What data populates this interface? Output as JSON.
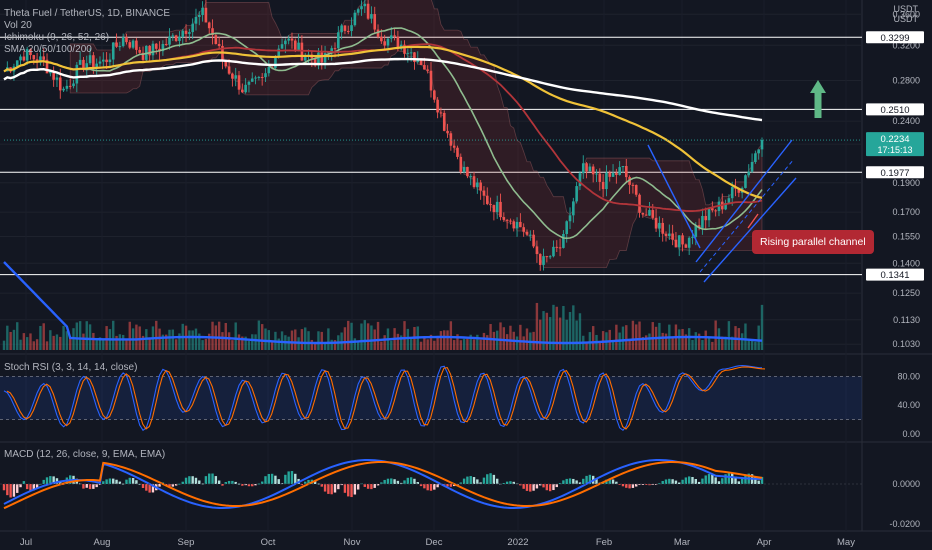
{
  "legend": {
    "symbol": "Theta Fuel / TetherUS, 1D, BINANCE",
    "volume": "Vol 20",
    "ichimoku": "Ichimoku (9, 26, 52, 26)",
    "sma": "SMA 20/50/100/200",
    "stoch": "Stoch RSI (3, 3, 14, 14, close)",
    "macd": "MACD (12, 26, close, 9, EMA, EMA)"
  },
  "price_axis_unit": [
    "USDT",
    "USDT"
  ],
  "current_price": {
    "value": "0.2234",
    "countdown": "17:15:13",
    "color": "#26a69a"
  },
  "annotation": "Rising parallel channel",
  "colors": {
    "background": "#131722",
    "up": "#26a69a",
    "down": "#ef5350",
    "sma20": "#8fbc8f",
    "sma50": "#b2353a",
    "sma100": "#f0c238",
    "sma200": "#ffffff",
    "volume_ma": "#2962ff",
    "channel": "#2962ff",
    "stoch_k": "#2962ff",
    "stoch_d": "#ff6d00",
    "macd_line": "#2962ff",
    "signal_line": "#ff6d00",
    "target_arrow": "#5fb886"
  },
  "chart_data": [
    {
      "type": "candlestick",
      "title": "Theta Fuel / TetherUS, 1D, BINANCE",
      "x_tick_labels": [
        "Jul",
        "Aug",
        "Sep",
        "Oct",
        "Nov",
        "Dec",
        "2022",
        "Feb",
        "Mar",
        "Apr",
        "May"
      ],
      "y_tick_labels": [
        "0.3600",
        "0.3200",
        "0.2800",
        "0.2400",
        "0.2200",
        "0.1900",
        "0.1700",
        "0.1550",
        "0.1400",
        "0.1250",
        "0.1130",
        "0.1030"
      ],
      "ylim": [
        0.1,
        0.38
      ],
      "y_scale": "log",
      "horizontal_levels": [
        "0.3299",
        "0.2510",
        "0.1977",
        "0.1341"
      ],
      "close_path": [
        [
          "Jul",
          0.29
        ],
        [
          "Jul",
          0.31
        ],
        [
          "Jul",
          0.3
        ],
        [
          "Jul",
          0.27
        ],
        [
          "Jul",
          0.3
        ],
        [
          "Aug",
          0.3
        ],
        [
          "Aug",
          0.33
        ],
        [
          "Aug",
          0.31
        ],
        [
          "Aug",
          0.32
        ],
        [
          "Sep",
          0.34
        ],
        [
          "Sep",
          0.36
        ],
        [
          "Sep",
          0.3
        ],
        [
          "Sep",
          0.27
        ],
        [
          "Oct",
          0.28
        ],
        [
          "Oct",
          0.33
        ],
        [
          "Oct",
          0.31
        ],
        [
          "Oct",
          0.3
        ],
        [
          "Nov",
          0.34
        ],
        [
          "Nov",
          0.37
        ],
        [
          "Nov",
          0.33
        ],
        [
          "Nov",
          0.32
        ],
        [
          "Dec",
          0.3
        ],
        [
          "Dec",
          0.24
        ],
        [
          "Dec",
          0.2
        ],
        [
          "Dec",
          0.18
        ],
        [
          "2022",
          0.17
        ],
        [
          "2022",
          0.16
        ],
        [
          "2022",
          0.14
        ],
        [
          "2022",
          0.15
        ],
        [
          "Feb",
          0.2
        ],
        [
          "Feb",
          0.19
        ],
        [
          "Feb",
          0.2
        ],
        [
          "Feb",
          0.17
        ],
        [
          "Mar",
          0.16
        ],
        [
          "Mar",
          0.15
        ],
        [
          "Mar",
          0.165
        ],
        [
          "Mar",
          0.175
        ],
        [
          "Mar",
          0.19
        ],
        [
          "Apr",
          0.2234
        ]
      ],
      "channel": "rising parallel channel, mid-March to end of March",
      "target": "arrow up towards 0.2800"
    },
    {
      "type": "line",
      "title": "Stoch RSI (3, 3, 14, 14, close)",
      "y_tick_labels": [
        "80.00",
        "40.00",
        "0.00"
      ],
      "ylim": [
        0,
        100
      ],
      "band": [
        20,
        80
      ],
      "series": [
        {
          "name": "K",
          "values": [
            60,
            20,
            70,
            10,
            80,
            20,
            85,
            5,
            90,
            30,
            80,
            10,
            75,
            15,
            85,
            20,
            90,
            5,
            80,
            20,
            90,
            10,
            95,
            15,
            85,
            10,
            80,
            20,
            90,
            15,
            85,
            5,
            70,
            30,
            85,
            60,
            90,
            95,
            92
          ]
        }
      ]
    },
    {
      "type": "bar",
      "title": "MACD (12, 26, close, 9, EMA, EMA)",
      "y_tick_labels": [
        "0.0000",
        "-0.0200"
      ],
      "ylim": [
        -0.022,
        0.016
      ],
      "series": [
        {
          "name": "Histogram",
          "values": [
            -0.006,
            -0.004,
            0.003,
            0.005,
            -0.003,
            0.002,
            0.004,
            -0.004,
            -0.002,
            0.003,
            0.005,
            0.002,
            -0.002,
            0.004,
            0.006,
            0.003,
            -0.004,
            -0.006,
            -0.003,
            0.002,
            0.004,
            -0.003,
            -0.002,
            0.003,
            0.005,
            0.002,
            -0.003,
            -0.004,
            0.002,
            0.004,
            0.003,
            -0.002,
            -0.001,
            0.002,
            0.003,
            0.004,
            0.005,
            0.004,
            0.006
          ]
        }
      ]
    }
  ]
}
